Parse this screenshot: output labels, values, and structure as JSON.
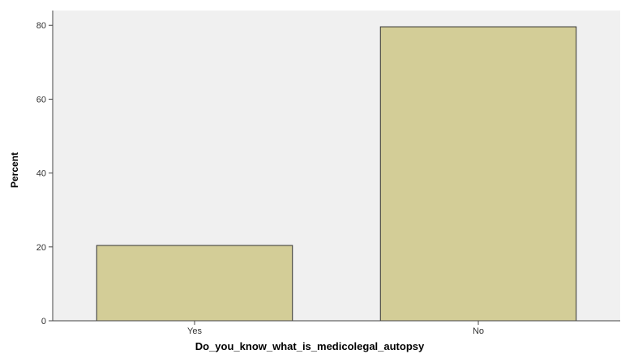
{
  "chart_data": {
    "type": "bar",
    "categories": [
      "Yes",
      "No"
    ],
    "values": [
      20.4,
      79.6
    ],
    "title": "",
    "xlabel": "Do_you_know_what_is_medicolegal_autopsy",
    "ylabel": "Percent",
    "ylim": [
      0,
      84
    ],
    "yticks": [
      0,
      20,
      40,
      60,
      80
    ],
    "grid": false,
    "legend": "none",
    "colors": {
      "bar_fill": "#d3cd97",
      "bar_stroke": "#333333",
      "plot_background": "#f0f0f0",
      "axis": "#444444"
    }
  }
}
